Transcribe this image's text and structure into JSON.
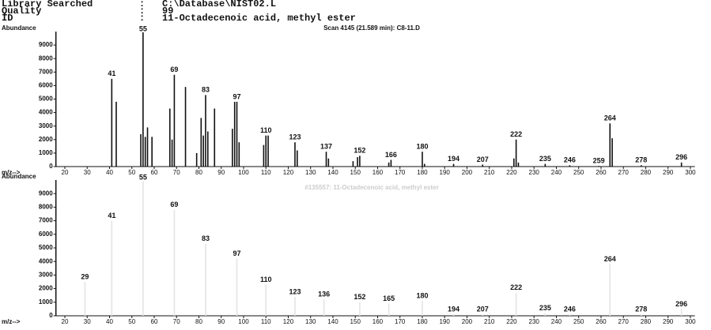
{
  "header": {
    "rows": [
      [
        "Library Searched",
        ":",
        "C:\\Database\\NIST02.L"
      ],
      [
        "Quality",
        ":",
        "99"
      ],
      [
        "ID",
        ":",
        "11-Octadecenoic acid, methyl ester"
      ]
    ]
  },
  "chart_data": [
    {
      "type": "bar",
      "title": "Scan 4145 (21.589 min): C8-11.D",
      "y_label": "Abundance",
      "x_label": "m/z-->",
      "xlim": [
        16,
        302
      ],
      "xticks": [
        20,
        30,
        40,
        50,
        60,
        70,
        80,
        90,
        100,
        110,
        120,
        130,
        140,
        150,
        160,
        170,
        180,
        190,
        200,
        210,
        220,
        230,
        240,
        250,
        260,
        270,
        280,
        290,
        300
      ],
      "ylim": [
        0,
        10000
      ],
      "yticks": [
        0,
        1000,
        2000,
        3000,
        4000,
        5000,
        6000,
        7000,
        8000,
        9000
      ],
      "series": [
        {
          "color": "#111111",
          "labeled": true,
          "x": [
            41,
            55,
            69,
            83,
            97,
            110,
            123,
            137,
            152,
            166,
            180,
            194,
            207,
            222,
            235,
            246,
            259,
            264,
            278,
            296
          ],
          "values": [
            6500,
            9950,
            6800,
            5300,
            4800,
            2300,
            1800,
            1100,
            800,
            500,
            1100,
            200,
            150,
            2000,
            200,
            100,
            50,
            3200,
            100,
            300
          ]
        },
        {
          "color": "#111111",
          "labeled": false,
          "x": [
            43,
            54,
            56,
            57,
            59,
            67,
            68,
            74,
            79,
            81,
            82,
            84,
            87,
            95,
            96,
            98,
            109,
            111,
            124,
            138,
            149,
            151,
            165,
            181,
            221,
            223,
            265
          ],
          "values": [
            4800,
            2400,
            2200,
            2900,
            2200,
            4300,
            2000,
            5900,
            1000,
            3600,
            2300,
            2600,
            4300,
            2800,
            4800,
            1800,
            1600,
            2300,
            1200,
            600,
            400,
            700,
            300,
            200,
            600,
            300,
            2100
          ]
        }
      ]
    },
    {
      "type": "bar",
      "title": "#135557: 11-Octadecenoic acid, methyl ester",
      "y_label": "Abundance",
      "x_label": "m/z-->",
      "xlim": [
        16,
        302
      ],
      "xticks": [
        20,
        30,
        40,
        50,
        60,
        70,
        80,
        90,
        100,
        110,
        120,
        130,
        140,
        150,
        160,
        170,
        180,
        190,
        200,
        210,
        220,
        230,
        240,
        250,
        260,
        270,
        280,
        290,
        300
      ],
      "ylim": [
        0,
        10000
      ],
      "yticks": [
        0,
        1000,
        2000,
        3000,
        4000,
        5000,
        6000,
        7000,
        8000,
        9000
      ],
      "series": [
        {
          "color": "#e4e4e4",
          "labeled": true,
          "x": [
            29,
            41,
            55,
            69,
            83,
            97,
            110,
            123,
            136,
            152,
            165,
            180,
            194,
            207,
            222,
            235,
            246,
            264,
            278,
            296
          ],
          "values": [
            2500,
            7000,
            9900,
            7800,
            5300,
            4200,
            2300,
            1400,
            1200,
            1000,
            900,
            1100,
            100,
            100,
            1700,
            200,
            100,
            3800,
            100,
            500
          ]
        }
      ]
    }
  ]
}
